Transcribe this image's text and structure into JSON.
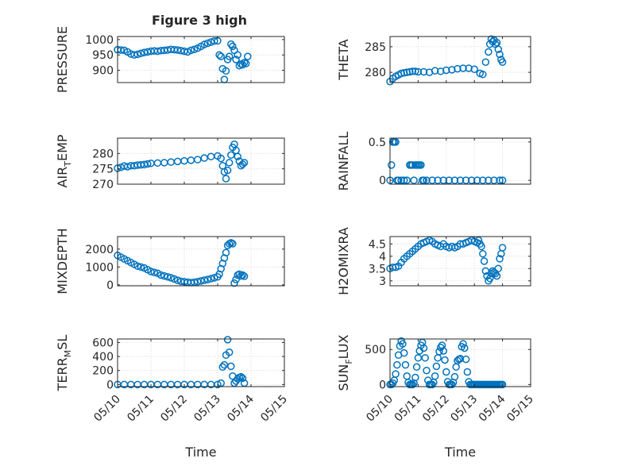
{
  "figure": {
    "title": "Figure 3 high",
    "marker_color": "#0072BD",
    "grid": true,
    "marker": "circle"
  },
  "chart_data": [
    {
      "type": "scatter",
      "ylabel": "PRESSURE",
      "xlabel": "",
      "xlim": [
        0,
        5
      ],
      "ylim": [
        860,
        1010
      ],
      "yticks": [
        900,
        950,
        1000
      ],
      "xticks": [
        0,
        1,
        2,
        3,
        4,
        5
      ],
      "xtick_labels": [
        "05/10",
        "05/11",
        "05/12",
        "05/13",
        "05/14",
        "05/15"
      ],
      "show_xticklabels": false,
      "x": [
        0,
        0.1,
        0.2,
        0.3,
        0.4,
        0.5,
        0.6,
        0.7,
        0.8,
        0.9,
        1.0,
        1.1,
        1.2,
        1.3,
        1.4,
        1.5,
        1.6,
        1.7,
        1.8,
        1.9,
        2.0,
        2.1,
        2.2,
        2.3,
        2.4,
        2.5,
        2.6,
        2.7,
        2.8,
        2.9,
        3.0,
        3.05,
        3.1,
        3.15,
        3.2,
        3.25,
        3.3,
        3.35,
        3.4,
        3.45,
        3.5,
        3.55,
        3.6,
        3.65,
        3.7,
        3.75,
        3.8,
        3.85,
        3.9
      ],
      "y": [
        967,
        966,
        965,
        960,
        953,
        950,
        952,
        955,
        958,
        960,
        962,
        963,
        962,
        964,
        965,
        966,
        968,
        967,
        966,
        964,
        962,
        960,
        965,
        968,
        972,
        978,
        984,
        988,
        992,
        995,
        996,
        950,
        945,
        905,
        870,
        898,
        935,
        945,
        985,
        978,
        965,
        935,
        950,
        915,
        920,
        918,
        925,
        922,
        945
      ]
    },
    {
      "type": "scatter",
      "ylabel": "THETA",
      "xlabel": "",
      "xlim": [
        0,
        5
      ],
      "ylim": [
        278,
        287
      ],
      "yticks": [
        280,
        285
      ],
      "xticks": [
        0,
        1,
        2,
        3,
        4,
        5
      ],
      "xtick_labels": [
        "05/10",
        "05/11",
        "05/12",
        "05/13",
        "05/14",
        "05/15"
      ],
      "show_xticklabels": false,
      "x": [
        0,
        0.1,
        0.2,
        0.3,
        0.4,
        0.5,
        0.6,
        0.7,
        0.8,
        0.9,
        1.0,
        1.2,
        1.4,
        1.6,
        1.8,
        2.0,
        2.2,
        2.4,
        2.6,
        2.8,
        3.0,
        3.2,
        3.3,
        3.4,
        3.5,
        3.55,
        3.6,
        3.65,
        3.7,
        3.75,
        3.8,
        3.85,
        3.9,
        3.95,
        4.0
      ],
      "y": [
        278.2,
        278.8,
        279.2,
        279.5,
        279.8,
        279.9,
        280.0,
        280.1,
        280.2,
        280.2,
        280.1,
        280.1,
        280.0,
        280.3,
        280.2,
        280.4,
        280.5,
        280.7,
        280.8,
        280.8,
        280.6,
        279.8,
        279.6,
        282.0,
        284.0,
        285.5,
        286.5,
        286.0,
        286.3,
        285.5,
        285.8,
        284.5,
        283.5,
        282.5,
        282.0
      ]
    },
    {
      "type": "scatter",
      "ylabel": "AIR_TEMP",
      "ylabel_main": "AIR",
      "ylabel_sub": "T",
      "ylabel_rest": "EMP",
      "xlabel": "",
      "xlim": [
        0,
        5
      ],
      "ylim": [
        270,
        285
      ],
      "yticks": [
        270,
        275,
        280
      ],
      "xticks": [
        0,
        1,
        2,
        3,
        4,
        5
      ],
      "xtick_labels": [
        "05/10",
        "05/11",
        "05/12",
        "05/13",
        "05/14",
        "05/15"
      ],
      "show_xticklabels": false,
      "x": [
        0,
        0.1,
        0.2,
        0.3,
        0.4,
        0.5,
        0.6,
        0.7,
        0.8,
        0.9,
        1.0,
        1.2,
        1.4,
        1.6,
        1.8,
        2.0,
        2.2,
        2.4,
        2.6,
        2.8,
        3.0,
        3.1,
        3.15,
        3.2,
        3.25,
        3.3,
        3.35,
        3.4,
        3.45,
        3.5,
        3.55,
        3.6,
        3.65,
        3.7,
        3.75,
        3.8
      ],
      "y": [
        275.2,
        275.5,
        275.9,
        275.7,
        276.0,
        276.0,
        276.2,
        276.3,
        276.4,
        276.6,
        276.8,
        276.9,
        277.0,
        277.2,
        277.4,
        277.6,
        277.8,
        278.0,
        278.5,
        279.0,
        279.2,
        278.4,
        276.0,
        274.0,
        271.8,
        274.5,
        277.0,
        279.5,
        282.0,
        283.0,
        281.0,
        279.0,
        277.5,
        276.0,
        276.5,
        277.0
      ]
    },
    {
      "type": "scatter",
      "ylabel": "RAINFALL",
      "xlabel": "",
      "xlim": [
        0,
        5
      ],
      "ylim": [
        -0.05,
        0.55
      ],
      "yticks": [
        0,
        0.5
      ],
      "xticks": [
        0,
        1,
        2,
        3,
        4,
        5
      ],
      "xtick_labels": [
        "05/10",
        "05/11",
        "05/12",
        "05/13",
        "05/14",
        "05/15"
      ],
      "show_xticklabels": false,
      "x": [
        0,
        0.05,
        0.1,
        0.15,
        0.2,
        0.25,
        0.3,
        0.4,
        0.5,
        0.6,
        0.7,
        0.75,
        0.8,
        0.85,
        0.9,
        0.95,
        1.0,
        1.05,
        1.1,
        1.15,
        1.2,
        1.3,
        1.5,
        1.7,
        1.9,
        2.1,
        2.3,
        2.5,
        2.7,
        2.9,
        3.1,
        3.3,
        3.5,
        3.7,
        3.9,
        4.0
      ],
      "y": [
        0,
        0.2,
        0.5,
        0.5,
        0.5,
        0,
        0,
        0,
        0,
        0,
        0.2,
        0.2,
        0.2,
        0,
        0.2,
        0.2,
        0.2,
        0.2,
        0.2,
        0,
        0,
        0,
        0,
        0,
        0,
        0,
        0,
        0,
        0,
        0,
        0,
        0,
        0,
        0,
        0,
        0
      ]
    },
    {
      "type": "scatter",
      "ylabel": "MIXDEPTH",
      "xlabel": "",
      "xlim": [
        0,
        5
      ],
      "ylim": [
        -50,
        2700
      ],
      "yticks": [
        0,
        1000,
        2000
      ],
      "xticks": [
        0,
        1,
        2,
        3,
        4,
        5
      ],
      "xtick_labels": [
        "05/10",
        "05/11",
        "05/12",
        "05/13",
        "05/14",
        "05/15"
      ],
      "show_xticklabels": false,
      "x": [
        0,
        0.1,
        0.2,
        0.3,
        0.4,
        0.5,
        0.6,
        0.7,
        0.8,
        0.9,
        1.0,
        1.1,
        1.2,
        1.3,
        1.4,
        1.5,
        1.6,
        1.7,
        1.8,
        1.9,
        2.0,
        2.1,
        2.2,
        2.3,
        2.4,
        2.5,
        2.6,
        2.7,
        2.8,
        2.9,
        3.0,
        3.05,
        3.1,
        3.15,
        3.2,
        3.25,
        3.3,
        3.35,
        3.4,
        3.45,
        3.5,
        3.55,
        3.6,
        3.65,
        3.7,
        3.75,
        3.8
      ],
      "y": [
        1650,
        1550,
        1450,
        1350,
        1250,
        1150,
        1050,
        1000,
        950,
        850,
        750,
        700,
        650,
        550,
        500,
        450,
        400,
        330,
        260,
        200,
        180,
        150,
        130,
        150,
        180,
        220,
        260,
        300,
        350,
        400,
        450,
        600,
        900,
        1200,
        1500,
        1800,
        2200,
        2300,
        2350,
        2300,
        100,
        300,
        550,
        600,
        500,
        550,
        480
      ]
    },
    {
      "type": "scatter",
      "ylabel": "H2OMIXRA",
      "xlabel": "",
      "xlim": [
        0,
        5
      ],
      "ylim": [
        2.8,
        4.8
      ],
      "yticks": [
        3,
        3.5,
        4,
        4.5
      ],
      "xticks": [
        0,
        1,
        2,
        3,
        4,
        5
      ],
      "xtick_labels": [
        "05/10",
        "05/11",
        "05/12",
        "05/13",
        "05/14",
        "05/15"
      ],
      "show_xticklabels": false,
      "x": [
        0,
        0.1,
        0.2,
        0.3,
        0.4,
        0.5,
        0.6,
        0.7,
        0.8,
        0.9,
        1.0,
        1.1,
        1.2,
        1.3,
        1.4,
        1.5,
        1.6,
        1.7,
        1.8,
        1.9,
        2.0,
        2.1,
        2.2,
        2.3,
        2.4,
        2.5,
        2.6,
        2.7,
        2.8,
        2.9,
        3.0,
        3.1,
        3.15,
        3.2,
        3.25,
        3.3,
        3.35,
        3.4,
        3.45,
        3.5,
        3.55,
        3.6,
        3.65,
        3.7,
        3.75,
        3.8,
        3.85,
        3.9,
        3.95,
        4.0
      ],
      "y": [
        3.5,
        3.55,
        3.55,
        3.6,
        3.75,
        3.9,
        4.0,
        4.1,
        4.2,
        4.3,
        4.4,
        4.5,
        4.55,
        4.6,
        4.65,
        4.6,
        4.5,
        4.45,
        4.4,
        4.5,
        4.4,
        4.35,
        4.4,
        4.35,
        4.4,
        4.5,
        4.5,
        4.55,
        4.6,
        4.65,
        4.6,
        4.55,
        4.65,
        4.5,
        4.4,
        4.1,
        3.8,
        3.4,
        3.2,
        3.0,
        3.1,
        3.3,
        3.4,
        3.35,
        3.3,
        3.2,
        3.5,
        3.9,
        4.1,
        4.35
      ]
    },
    {
      "type": "scatter",
      "ylabel": "TERR_MSL",
      "ylabel_main": "TERR",
      "ylabel_sub": "M",
      "ylabel_rest": "SL",
      "xlabel": "Time",
      "xlim": [
        0,
        5
      ],
      "ylim": [
        -30,
        650
      ],
      "yticks": [
        0,
        200,
        400,
        600
      ],
      "xticks": [
        0,
        1,
        2,
        3,
        4,
        5
      ],
      "xtick_labels": [
        "05/10",
        "05/11",
        "05/12",
        "05/13",
        "05/14",
        "05/15"
      ],
      "show_xticklabels": true,
      "x": [
        0,
        0.2,
        0.4,
        0.6,
        0.8,
        1.0,
        1.2,
        1.4,
        1.6,
        1.8,
        2.0,
        2.2,
        2.4,
        2.6,
        2.8,
        3.0,
        3.1,
        3.15,
        3.2,
        3.25,
        3.3,
        3.35,
        3.4,
        3.45,
        3.5,
        3.55,
        3.6,
        3.65,
        3.7,
        3.75,
        3.8
      ],
      "y": [
        0,
        0,
        0,
        0,
        0,
        0,
        0,
        0,
        0,
        0,
        0,
        0,
        0,
        0,
        0,
        0,
        20,
        250,
        280,
        420,
        640,
        460,
        260,
        120,
        20,
        50,
        80,
        100,
        110,
        90,
        20
      ]
    },
    {
      "type": "scatter",
      "ylabel": "SUN_FLUX",
      "ylabel_main": "SUN",
      "ylabel_sub": "F",
      "ylabel_rest": "LUX",
      "xlabel": "Time",
      "xlim": [
        0,
        5
      ],
      "ylim": [
        -30,
        650
      ],
      "yticks": [
        0,
        500
      ],
      "xticks": [
        0,
        1,
        2,
        3,
        4,
        5
      ],
      "xtick_labels": [
        "05/10",
        "05/11",
        "05/12",
        "05/13",
        "05/14",
        "05/15"
      ],
      "show_xticklabels": true,
      "x": [
        0,
        0.05,
        0.1,
        0.15,
        0.2,
        0.25,
        0.3,
        0.35,
        0.4,
        0.45,
        0.5,
        0.55,
        0.6,
        0.65,
        0.7,
        0.75,
        0.8,
        0.85,
        0.9,
        0.95,
        1.0,
        1.05,
        1.1,
        1.15,
        1.2,
        1.25,
        1.3,
        1.35,
        1.4,
        1.45,
        1.5,
        1.55,
        1.6,
        1.65,
        1.7,
        1.75,
        1.8,
        1.85,
        1.9,
        1.95,
        2.0,
        2.05,
        2.1,
        2.15,
        2.2,
        2.25,
        2.3,
        2.35,
        2.4,
        2.45,
        2.5,
        2.55,
        2.6,
        2.65,
        2.7,
        2.75,
        2.8,
        2.85,
        2.9,
        2.95,
        3.0,
        3.05,
        3.1,
        3.15,
        3.2,
        3.25,
        3.3,
        3.35,
        3.4,
        3.45,
        3.5,
        3.55,
        3.6,
        3.65,
        3.7,
        3.75,
        3.8,
        3.85,
        3.9,
        3.95,
        4.0
      ],
      "y": [
        0,
        0,
        20,
        60,
        150,
        280,
        420,
        550,
        620,
        580,
        450,
        280,
        120,
        30,
        0,
        0,
        0,
        20,
        100,
        250,
        380,
        480,
        560,
        600,
        520,
        380,
        200,
        60,
        0,
        0,
        0,
        30,
        120,
        260,
        380,
        470,
        530,
        560,
        480,
        350,
        180,
        40,
        0,
        0,
        0,
        30,
        110,
        250,
        340,
        360,
        370,
        540,
        580,
        520,
        360,
        180,
        40,
        0,
        0,
        0,
        0,
        0,
        0,
        0,
        0,
        0,
        0,
        0,
        0,
        0,
        0,
        0,
        0,
        0,
        0,
        0,
        0,
        0,
        0,
        0,
        0
      ]
    }
  ]
}
